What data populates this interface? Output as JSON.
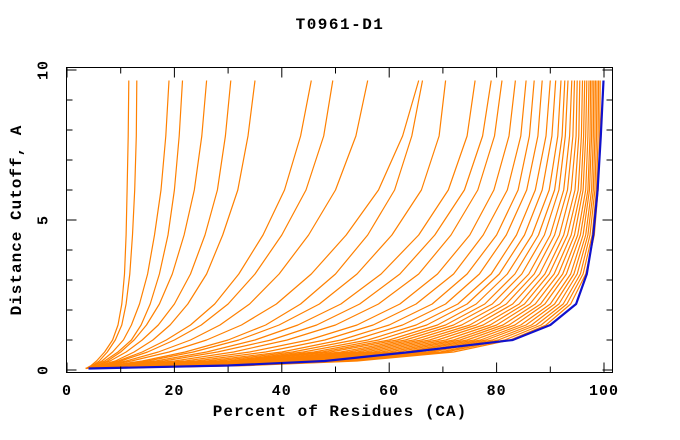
{
  "chart_data": {
    "type": "line",
    "title": "T0961-D1",
    "xlabel": "Percent of Residues (CA)",
    "ylabel": "Distance Cutoff, A",
    "xlim": [
      0,
      102
    ],
    "ylim": [
      0,
      10.1
    ],
    "grid": false,
    "legend": "none",
    "x_major_ticks": [
      0,
      20,
      40,
      60,
      80,
      100
    ],
    "x_minor_ticks": [
      10,
      30,
      50,
      70,
      90
    ],
    "y_major_ticks": [
      0,
      5,
      10
    ],
    "y_minor_ticks": [
      1,
      2,
      3,
      4,
      6,
      7,
      8,
      9
    ],
    "colors": {
      "model_curves": "#ff8000",
      "best_curve": "#1111cc",
      "axis": "#000000",
      "background": "#ffffff"
    },
    "y_levels": [
      0.05,
      0.15,
      0.3,
      0.6,
      1.0,
      1.5,
      2.2,
      3.2,
      4.5,
      6.0,
      7.8,
      9.65
    ],
    "series": [
      {
        "name": "orange-model-curves",
        "color_key": "model_curves",
        "x_at_levels": [
          [
            3.5,
            4.5,
            5.5,
            7.0,
            8.5,
            9.5,
            10.2,
            10.7,
            11.0,
            11.2,
            11.4,
            11.5
          ],
          [
            3.5,
            4.8,
            6.0,
            7.5,
            9.0,
            10.2,
            11.0,
            11.7,
            12.2,
            12.6,
            12.9,
            13.0
          ],
          [
            3.5,
            5.0,
            6.5,
            8.5,
            10.5,
            12.0,
            13.5,
            15.0,
            16.3,
            17.5,
            18.4,
            19.0
          ],
          [
            3.5,
            5.0,
            7.0,
            9.5,
            12.0,
            13.8,
            15.5,
            17.2,
            18.8,
            20.0,
            20.9,
            21.5
          ],
          [
            3.5,
            5.5,
            7.5,
            10.0,
            12.5,
            14.8,
            17.2,
            19.6,
            21.8,
            23.7,
            25.1,
            26.0
          ],
          [
            3.5,
            5.5,
            8.0,
            11.0,
            14.0,
            17.0,
            20.0,
            23.0,
            25.7,
            28.0,
            29.5,
            30.5
          ],
          [
            3.5,
            6.0,
            9.0,
            12.5,
            16.0,
            19.2,
            22.5,
            26.0,
            29.0,
            31.8,
            33.7,
            35.0
          ],
          [
            3.5,
            6.0,
            9.5,
            14.0,
            18.5,
            23.0,
            27.5,
            32.0,
            36.5,
            40.5,
            43.5,
            45.5
          ],
          [
            4.0,
            6.5,
            10.0,
            15.0,
            20.0,
            25.0,
            30.0,
            35.0,
            40.0,
            44.5,
            47.8,
            49.5
          ],
          [
            4.0,
            7.0,
            11.0,
            17.0,
            23.0,
            28.5,
            34.0,
            39.5,
            45.0,
            50.0,
            53.8,
            56.0
          ],
          [
            4.0,
            7.5,
            12.0,
            19.0,
            26.0,
            32.5,
            39.0,
            45.5,
            52.0,
            58.0,
            62.5,
            65.5
          ],
          [
            4.0,
            8.0,
            14.0,
            22.0,
            30.0,
            37.0,
            43.5,
            50.0,
            56.0,
            61.0,
            64.2,
            66.2
          ],
          [
            4.0,
            8.5,
            15.0,
            23.5,
            32.0,
            39.5,
            47.0,
            54.0,
            60.5,
            66.0,
            69.3,
            70.5
          ],
          [
            4.0,
            9.0,
            16.5,
            26.0,
            35.0,
            43.0,
            51.0,
            58.5,
            65.5,
            71.0,
            74.5,
            76.0
          ],
          [
            4.0,
            10.0,
            18.0,
            28.0,
            38.0,
            46.5,
            54.5,
            62.0,
            68.5,
            74.0,
            77.4,
            79.0
          ],
          [
            4.0,
            11.0,
            20.0,
            31.0,
            41.0,
            50.0,
            58.0,
            65.5,
            71.5,
            76.5,
            79.6,
            81.0
          ],
          [
            4.0,
            12.0,
            22.0,
            34.0,
            45.0,
            54.0,
            62.0,
            69.0,
            75.0,
            79.5,
            82.3,
            83.5
          ],
          [
            4.0,
            13.0,
            24.0,
            37.0,
            48.0,
            57.0,
            65.0,
            72.0,
            77.5,
            82.0,
            84.5,
            85.5
          ],
          [
            4.0,
            14.0,
            26.0,
            40.0,
            51.0,
            60.0,
            68.0,
            74.5,
            80.0,
            84.0,
            86.1,
            87.0
          ],
          [
            4.0,
            15.0,
            28.0,
            42.0,
            53.5,
            62.5,
            70.5,
            76.8,
            81.8,
            85.6,
            87.7,
            88.5
          ],
          [
            4.0,
            16.0,
            30.0,
            44.0,
            56.0,
            65.0,
            72.8,
            79.0,
            83.7,
            87.2,
            89.2,
            90.0
          ],
          [
            4.0,
            16.5,
            31.0,
            46.0,
            58.0,
            67.0,
            74.5,
            80.5,
            85.2,
            88.5,
            90.3,
            91.0
          ],
          [
            4.0,
            17.0,
            32.0,
            47.5,
            60.0,
            69.0,
            76.2,
            82.0,
            86.6,
            89.8,
            91.4,
            92.0
          ],
          [
            4.0,
            18.0,
            33.5,
            49.0,
            61.5,
            70.5,
            77.8,
            83.4,
            87.8,
            90.8,
            92.2,
            92.7
          ],
          [
            4.0,
            19.0,
            35.0,
            51.0,
            63.0,
            72.0,
            79.2,
            84.7,
            88.9,
            91.6,
            92.8,
            93.3
          ],
          [
            4.0,
            20.0,
            36.5,
            52.5,
            64.5,
            73.5,
            80.6,
            86.0,
            90.0,
            92.5,
            93.6,
            94.0
          ],
          [
            4.0,
            21.0,
            38.0,
            54.0,
            66.0,
            75.0,
            81.8,
            87.0,
            90.8,
            93.2,
            94.2,
            94.5
          ],
          [
            4.0,
            22.0,
            39.5,
            55.5,
            67.5,
            76.2,
            83.0,
            88.0,
            91.7,
            93.9,
            94.8,
            95.0
          ],
          [
            4.0,
            23.0,
            41.0,
            57.0,
            69.0,
            77.5,
            84.2,
            89.0,
            92.5,
            94.6,
            95.3,
            95.5
          ],
          [
            4.0,
            24.0,
            42.0,
            58.5,
            70.5,
            78.8,
            85.2,
            89.8,
            93.2,
            95.2,
            95.8,
            96.0
          ],
          [
            4.0,
            25.0,
            43.5,
            60.0,
            72.0,
            80.0,
            86.2,
            90.7,
            93.9,
            95.7,
            96.2,
            96.4
          ],
          [
            4.0,
            26.0,
            45.0,
            61.5,
            73.2,
            81.2,
            87.2,
            91.5,
            94.5,
            96.1,
            96.6,
            96.8
          ],
          [
            4.0,
            27.0,
            46.0,
            63.0,
            74.5,
            82.3,
            88.2,
            92.3,
            95.1,
            96.6,
            97.0,
            97.2
          ],
          [
            4.0,
            28.0,
            47.0,
            64.0,
            75.8,
            83.4,
            89.0,
            93.0,
            95.6,
            97.0,
            97.4,
            97.5
          ],
          [
            4.0,
            29.0,
            48.0,
            65.5,
            77.0,
            84.5,
            90.0,
            93.8,
            96.1,
            97.3,
            97.7,
            97.8
          ],
          [
            4.0,
            30.0,
            49.0,
            67.0,
            78.0,
            85.5,
            90.8,
            94.4,
            96.6,
            97.7,
            98.0,
            98.1
          ],
          [
            4.0,
            31.0,
            50.0,
            68.0,
            79.2,
            86.5,
            91.6,
            95.0,
            97.0,
            98.0,
            98.3,
            98.4
          ],
          [
            4.0,
            32.0,
            51.5,
            69.5,
            80.3,
            87.4,
            92.4,
            95.6,
            97.4,
            98.3,
            98.6,
            98.7
          ],
          [
            4.0,
            33.0,
            52.5,
            70.5,
            81.5,
            88.3,
            93.1,
            96.1,
            97.8,
            98.6,
            98.9,
            99.0
          ],
          [
            4.0,
            34.0,
            54.0,
            72.0,
            82.5,
            89.2,
            93.8,
            96.6,
            98.2,
            98.9,
            99.2,
            99.3
          ]
        ]
      },
      {
        "name": "blue-best-curve",
        "color_key": "best_curve",
        "x_at_levels": [
          [
            4.0,
            30.0,
            48.0,
            64.0,
            83.0,
            90.0,
            94.8,
            96.8,
            98.0,
            98.8,
            99.4,
            99.9
          ]
        ]
      }
    ]
  }
}
